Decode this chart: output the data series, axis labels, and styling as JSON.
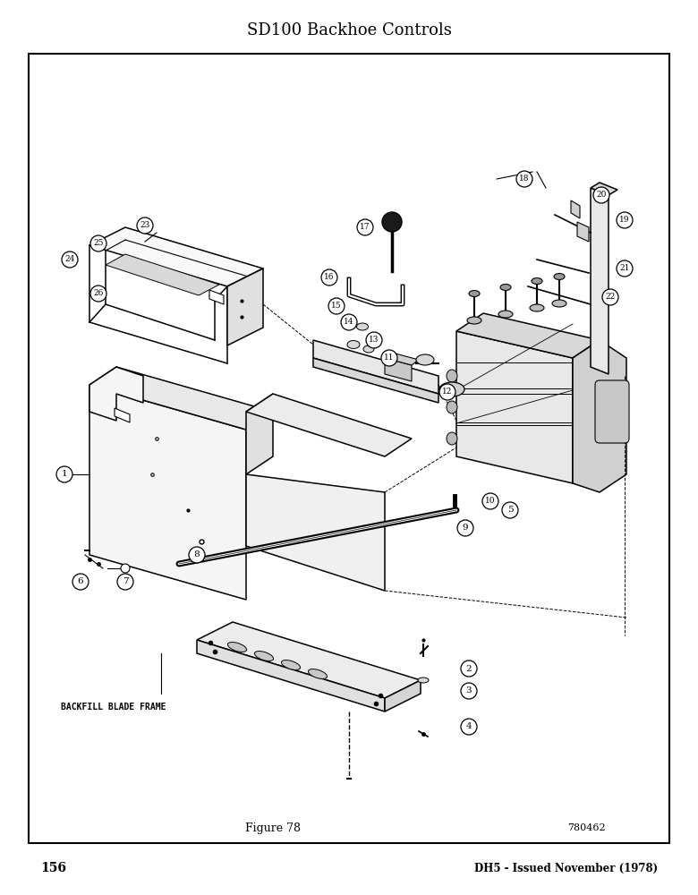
{
  "title": "SD100 Backhoe Controls",
  "figure_label": "Figure 78",
  "figure_number": "780462",
  "page_number": "156",
  "page_right": "DH5 - Issued November (1978)",
  "backfill_label": "BACKFILL BLADE FRAME",
  "bg_color": "#ffffff"
}
